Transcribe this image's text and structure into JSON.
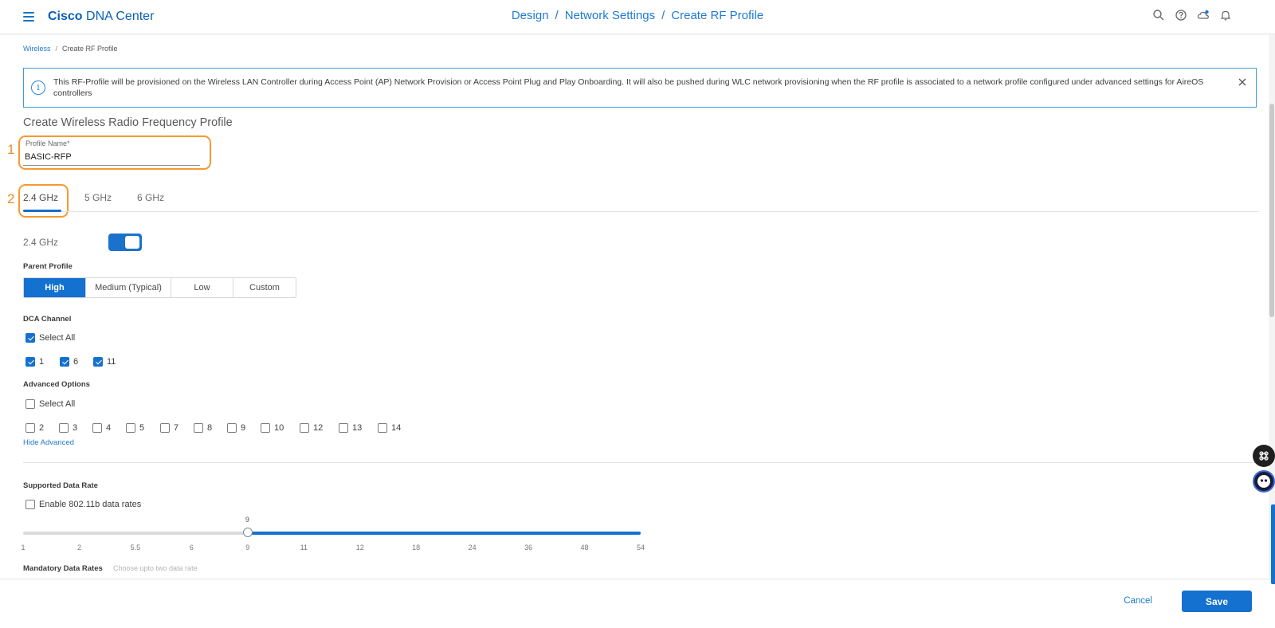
{
  "header": {
    "brand_bold": "Cisco",
    "brand_rest": "DNA Center",
    "path": [
      "Design",
      "Network Settings",
      "Create RF Profile"
    ],
    "path_sep": "/"
  },
  "breadcrumb": {
    "parent": "Wireless",
    "sep": "/",
    "current": "Create RF Profile"
  },
  "banner": {
    "icon_glyph": "i",
    "message": "This RF-Profile will be provisioned on the Wireless LAN Controller during Access Point (AP) Network Provision or Access Point Plug and Play Onboarding. It will also be pushed during WLC network provisioning when the RF profile is associated to a network profile configured under advanced settings for AireOS controllers"
  },
  "page_title": "Create Wireless Radio Frequency Profile",
  "callouts": [
    "1",
    "2"
  ],
  "profile_name": {
    "label": "Profile Name*",
    "value": "BASIC-RFP"
  },
  "tabs": [
    {
      "label": "2.4 GHz",
      "active": true
    },
    {
      "label": "5 GHz",
      "active": false
    },
    {
      "label": "6 GHz",
      "active": false
    }
  ],
  "band_toggle": {
    "label": "2.4 GHz",
    "on": true
  },
  "parent_profile": {
    "label": "Parent Profile",
    "options": [
      "High",
      "Medium (Typical)",
      "Low",
      "Custom"
    ],
    "selected": "High"
  },
  "dca_channel": {
    "label": "DCA Channel",
    "select_all": "Select All",
    "channels": [
      "1",
      "6",
      "11"
    ]
  },
  "advanced_options": {
    "label": "Advanced Options",
    "select_all": "Select All",
    "channels": [
      "2",
      "3",
      "4",
      "5",
      "7",
      "8",
      "9",
      "10",
      "12",
      "13",
      "14"
    ],
    "hide_link": "Hide Advanced"
  },
  "supported_data_rate": {
    "label": "Supported Data Rate",
    "enable_80211b": "Enable 802.11b data rates",
    "slider_value": "9",
    "ticks": [
      "1",
      "2",
      "5.5",
      "6",
      "9",
      "11",
      "12",
      "18",
      "24",
      "36",
      "48",
      "54"
    ]
  },
  "mandatory_data_rates": {
    "label": "Mandatory Data Rates",
    "hint": "Choose upto two data rate"
  },
  "footer": {
    "cancel": "Cancel",
    "save": "Save"
  },
  "colors": {
    "accent": "#1571d0",
    "callout": "#f59a32",
    "banner_border": "#3c9cd8"
  }
}
